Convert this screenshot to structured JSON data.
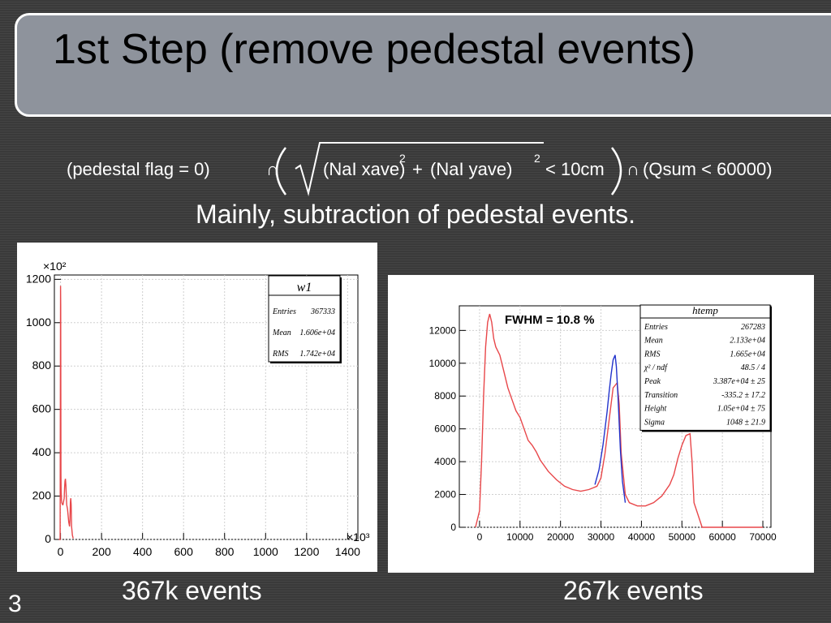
{
  "title": "1st Step (remove pedestal events)",
  "formula": {
    "part1": "(pedestal flag = 0)",
    "cap": "∩",
    "radicand_a": "(NaI xave)",
    "plus": "+",
    "radicand_b": "(NaI yave)",
    "exp": "2",
    "cond": "< 10cm",
    "part3": "(Qsum < 60000)"
  },
  "subtitle": "Mainly, subtraction of pedestal events.",
  "captions": {
    "left": "367k events",
    "right": "267k events"
  },
  "slide_number": "3",
  "chart_data": [
    {
      "type": "line",
      "title": "",
      "xlabel": "",
      "ylabel": "",
      "x_multiplier": "×10³",
      "y_multiplier": "×10²",
      "xlim": [
        -30,
        1450
      ],
      "ylim": [
        0,
        1220
      ],
      "xticks": [
        "0",
        "200",
        "400",
        "600",
        "800",
        "1000",
        "1200",
        "1400"
      ],
      "yticks": [
        "0",
        "200",
        "400",
        "600",
        "800",
        "1000",
        "1200"
      ],
      "series": [
        {
          "color": "#e8474a",
          "x": [
            -8,
            -4,
            -2,
            0,
            1,
            2,
            3,
            4,
            5,
            6,
            8,
            10,
            12,
            14,
            16,
            18,
            20,
            22,
            24,
            26,
            28,
            30,
            32,
            34,
            36,
            38,
            40,
            42,
            44,
            46,
            48,
            50,
            52,
            54,
            58,
            62
          ],
          "y": [
            0,
            0,
            0,
            1170,
            1080,
            300,
            230,
            200,
            180,
            170,
            165,
            160,
            160,
            170,
            180,
            190,
            240,
            270,
            280,
            250,
            200,
            160,
            150,
            140,
            120,
            100,
            80,
            70,
            60,
            90,
            170,
            190,
            160,
            60,
            20,
            5
          ]
        }
      ],
      "stats": {
        "name": "w1",
        "rows": [
          {
            "label": "Entries",
            "value": "367333"
          },
          {
            "label": "Mean",
            "value": "1.606e+04"
          },
          {
            "label": "RMS",
            "value": "1.742e+04"
          }
        ]
      }
    },
    {
      "type": "line",
      "title": "",
      "xlabel": "",
      "ylabel": "",
      "xlim": [
        -5000,
        72000
      ],
      "ylim": [
        0,
        13500
      ],
      "xticks": [
        "0",
        "10000",
        "20000",
        "30000",
        "40000",
        "50000",
        "60000",
        "70000"
      ],
      "yticks": [
        "0",
        "2000",
        "4000",
        "6000",
        "8000",
        "10000",
        "12000"
      ],
      "annotation": "FWHM = 10.8 %",
      "series": [
        {
          "color": "#e8474a",
          "x": [
            -1000,
            0,
            500,
            1000,
            1500,
            2000,
            2500,
            3000,
            3500,
            4000,
            5000,
            6000,
            7000,
            8000,
            9000,
            10000,
            11000,
            12000,
            13000,
            14000,
            15000,
            17000,
            19000,
            21000,
            23000,
            25000,
            27000,
            28000,
            29000,
            30000,
            31000,
            32000,
            33000,
            34000,
            34500,
            35000,
            36000,
            37000,
            39000,
            41000,
            43000,
            45000,
            47000,
            48000,
            49000,
            50000,
            51000,
            52000,
            52500,
            53000,
            55000,
            60000,
            70000
          ],
          "y": [
            0,
            1000,
            4000,
            8000,
            11000,
            12500,
            13000,
            12500,
            11500,
            11000,
            10500,
            9500,
            8500,
            7800,
            7100,
            6700,
            6000,
            5300,
            5000,
            4600,
            4100,
            3400,
            2900,
            2500,
            2300,
            2200,
            2300,
            2400,
            2500,
            3000,
            4500,
            6500,
            8500,
            8800,
            7500,
            4500,
            2000,
            1500,
            1300,
            1300,
            1500,
            1900,
            2600,
            3200,
            4200,
            5000,
            5600,
            5700,
            4000,
            1500,
            0,
            0,
            0
          ]
        },
        {
          "color": "#2233cc",
          "x": [
            28500,
            29500,
            30500,
            31500,
            32000,
            32500,
            33000,
            33500,
            33800,
            34200,
            34800,
            35300,
            36000
          ],
          "y": [
            2600,
            3500,
            5000,
            7000,
            8200,
            9300,
            10200,
            10500,
            9800,
            8000,
            4700,
            2800,
            1500
          ]
        }
      ],
      "stats": {
        "name": "htemp",
        "rows": [
          {
            "label": "Entries",
            "value": "267283"
          },
          {
            "label": "Mean",
            "value": "2.133e+04"
          },
          {
            "label": "RMS",
            "value": "1.665e+04"
          },
          {
            "label": "χ² / ndf",
            "value": "48.5 / 4"
          },
          {
            "label": "Peak",
            "value": "3.387e+04 ± 25"
          },
          {
            "label": "Transition",
            "value": "-335.2 ± 17.2"
          },
          {
            "label": "Height",
            "value": "1.05e+04 ± 75"
          },
          {
            "label": "Sigma",
            "value": "1048 ± 21.9"
          }
        ]
      }
    }
  ]
}
